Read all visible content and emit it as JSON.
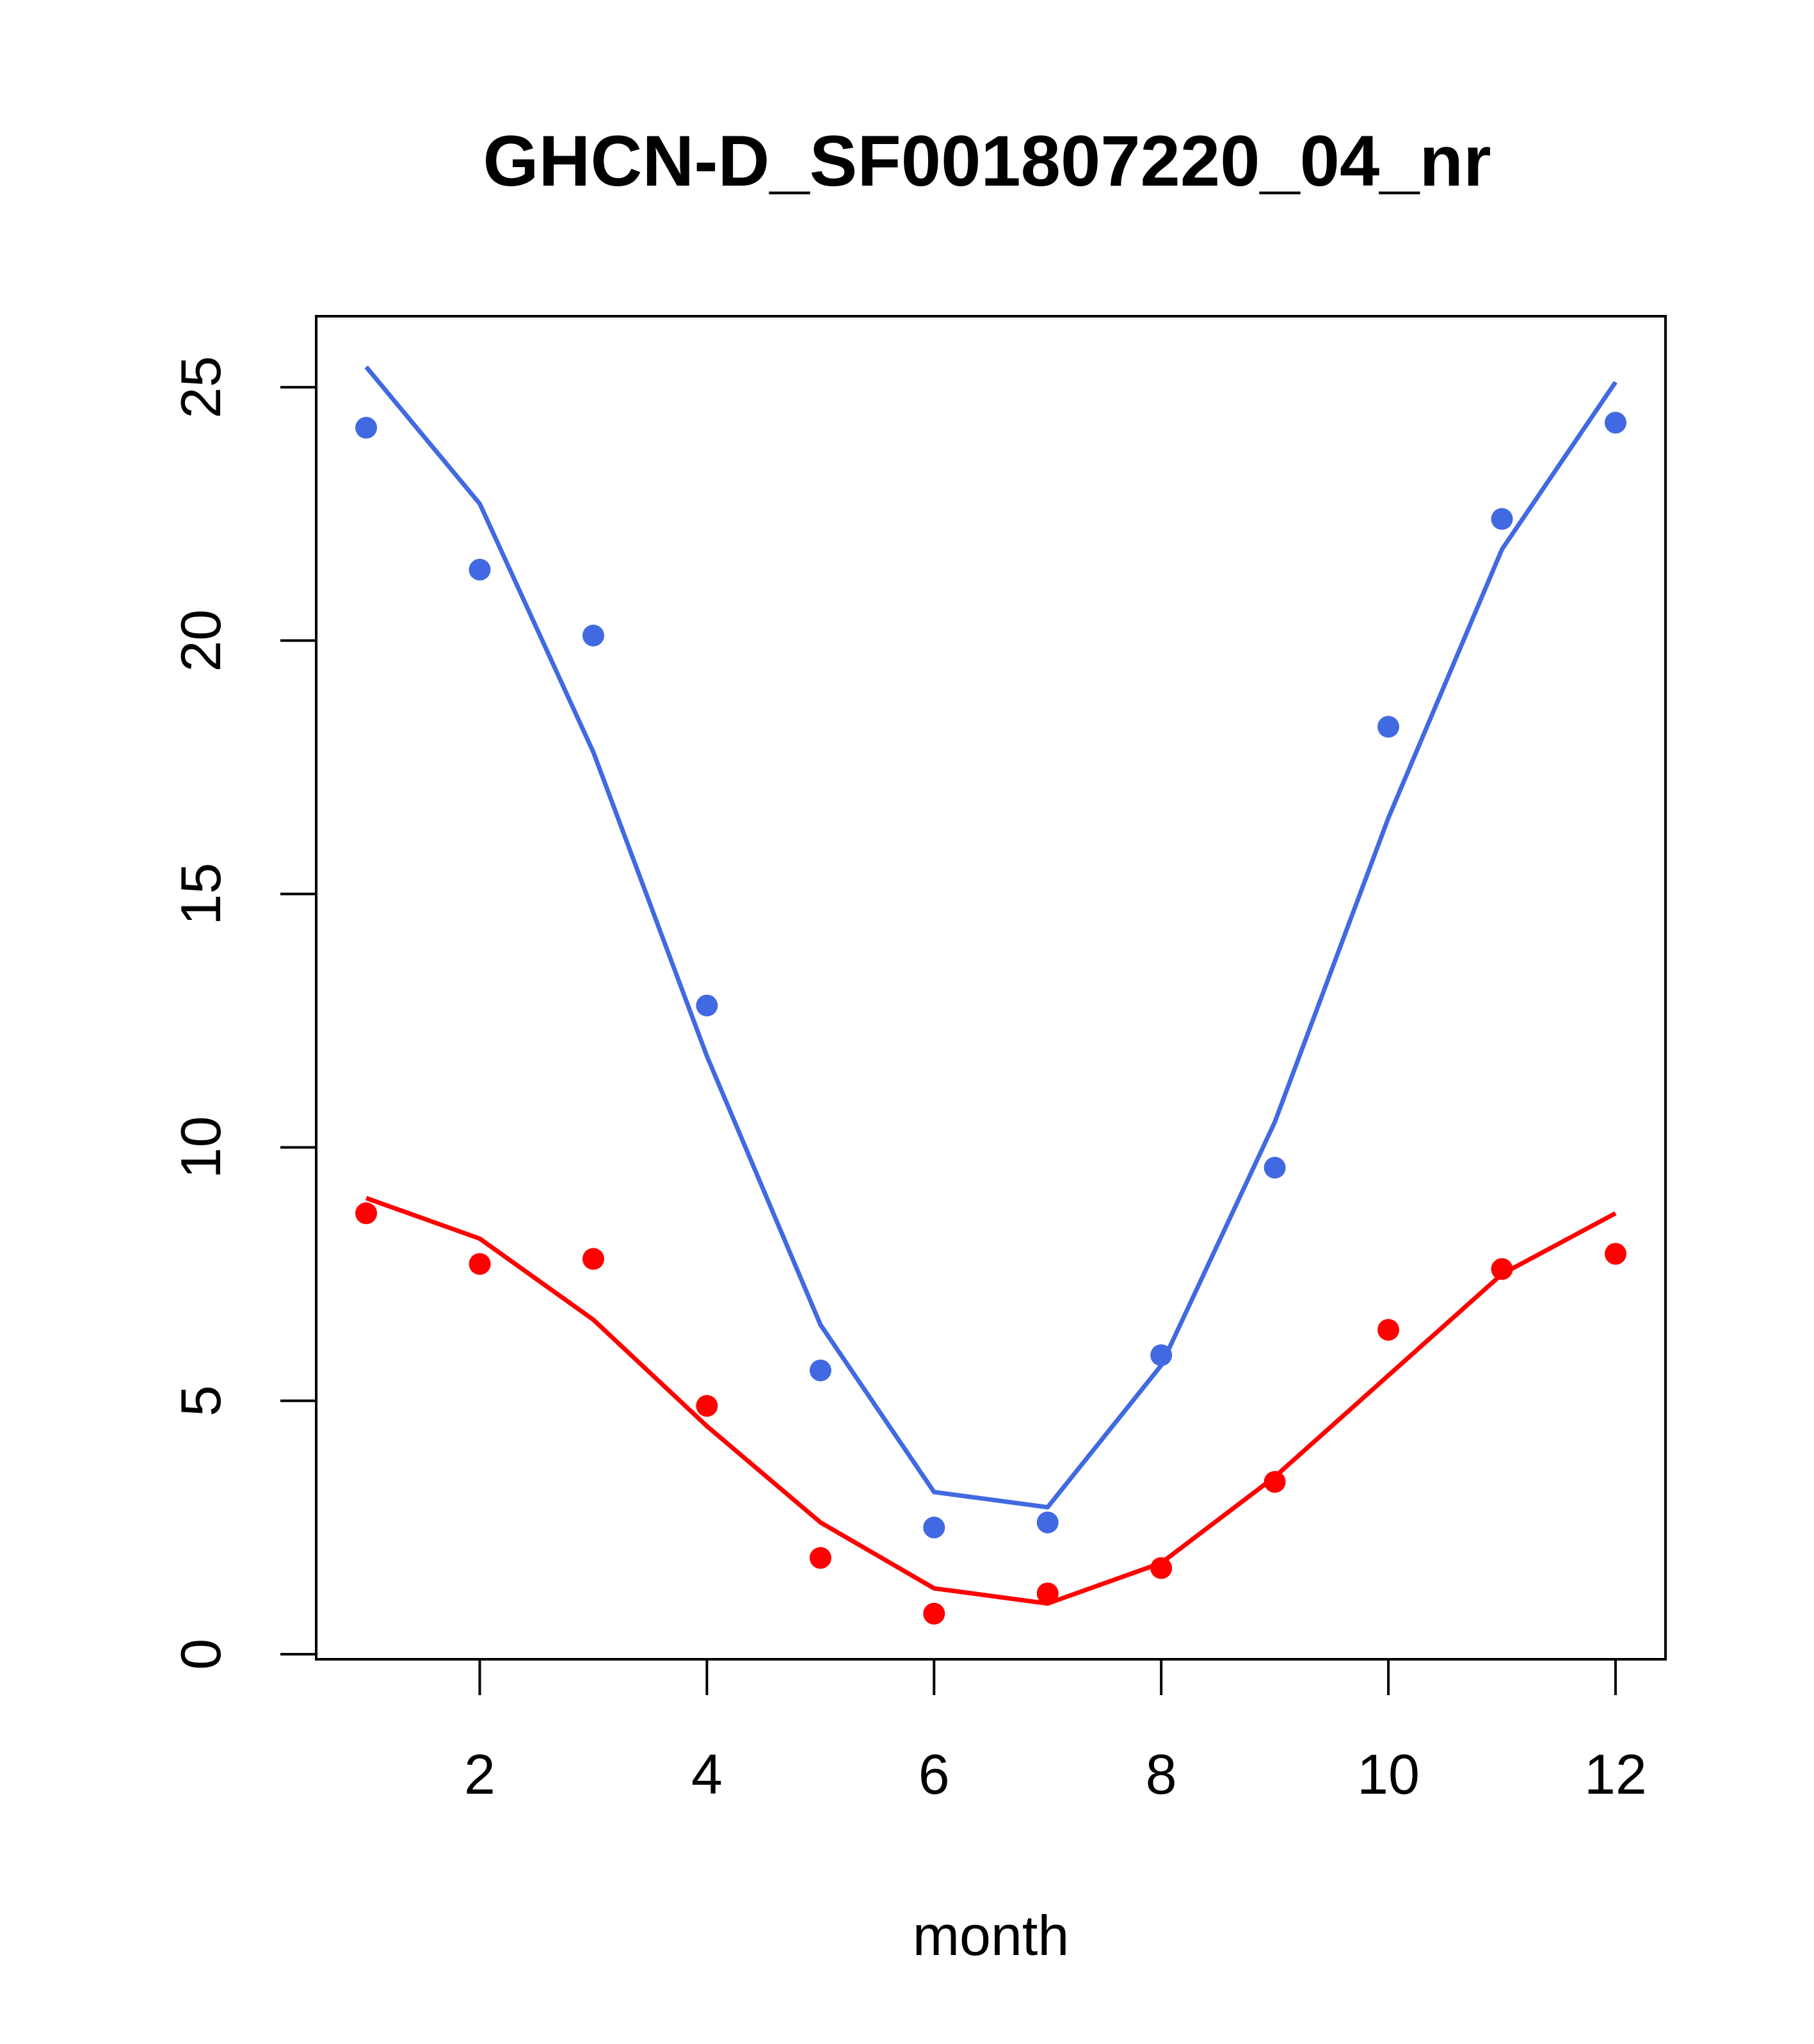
{
  "chart_data": {
    "type": "line",
    "title": "GHCN-D_SF001807220_04_nr",
    "xlabel": "month",
    "ylabel": "",
    "xlim": [
      0.56,
      12.44
    ],
    "ylim": [
      -0.1,
      26.4
    ],
    "x_ticks": [
      2,
      4,
      6,
      8,
      10,
      12
    ],
    "y_ticks": [
      0,
      5,
      10,
      15,
      20,
      25
    ],
    "grid": false,
    "legend": "none",
    "x": [
      1,
      2,
      3,
      4,
      5,
      6,
      7,
      8,
      9,
      10,
      11,
      12
    ],
    "series": [
      {
        "color": "#4169E1",
        "points": [
          24.2,
          21.4,
          20.1,
          12.8,
          5.6,
          2.5,
          2.6,
          5.9,
          9.6,
          18.3,
          22.4,
          24.3
        ],
        "fit": [
          25.4,
          22.7,
          17.8,
          11.8,
          6.5,
          3.2,
          2.9,
          5.7,
          10.5,
          16.5,
          21.8,
          25.1
        ]
      },
      {
        "color": "#FF0000",
        "points": [
          8.7,
          7.7,
          7.8,
          4.9,
          1.9,
          0.8,
          1.2,
          1.7,
          3.4,
          6.4,
          7.6,
          7.9
        ],
        "fit": [
          9.0,
          8.2,
          6.6,
          4.5,
          2.6,
          1.3,
          1.0,
          1.8,
          3.5,
          5.5,
          7.5,
          8.7
        ]
      }
    ]
  }
}
